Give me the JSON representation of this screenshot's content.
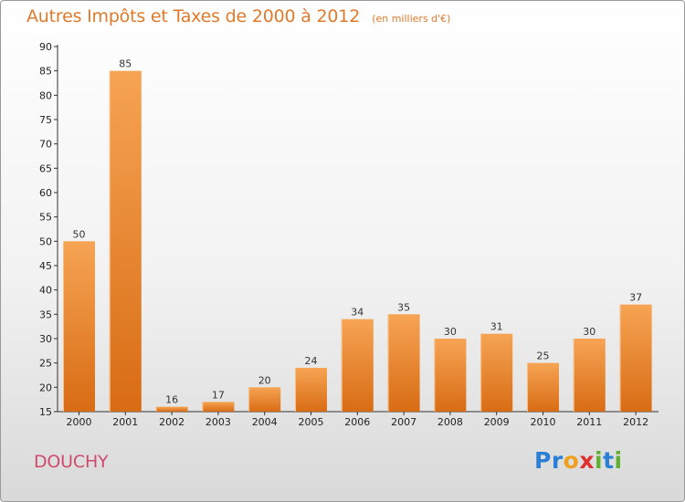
{
  "chart_data": {
    "type": "bar",
    "title": "Autres Impôts et Taxes de 2000 à 2012",
    "subtitle": "(en milliers d'€)",
    "categories": [
      "2000",
      "2001",
      "2002",
      "2003",
      "2004",
      "2005",
      "2006",
      "2007",
      "2008",
      "2009",
      "2010",
      "2011",
      "2012"
    ],
    "values": [
      50,
      85,
      16,
      17,
      20,
      24,
      34,
      35,
      30,
      31,
      25,
      30,
      37
    ],
    "ylim": [
      15,
      90
    ],
    "yticks": [
      15,
      20,
      25,
      30,
      35,
      40,
      45,
      50,
      55,
      60,
      65,
      70,
      75,
      80,
      85,
      90
    ],
    "grid": false,
    "bar_color": "#f08a30",
    "bar_color_dark": "#d86c14"
  },
  "location": "DOUCHY",
  "brand": {
    "text": "Proxiti",
    "letters": [
      {
        "ch": "P",
        "color": "#2b7fd4"
      },
      {
        "ch": "r",
        "color": "#2b7fd4"
      },
      {
        "ch": "o",
        "color": "#f0a020"
      },
      {
        "ch": "x",
        "color": "#e03030"
      },
      {
        "ch": "i",
        "color": "#60b030"
      },
      {
        "ch": "t",
        "color": "#2b7fd4"
      },
      {
        "ch": "i",
        "color": "#60b030"
      }
    ]
  }
}
